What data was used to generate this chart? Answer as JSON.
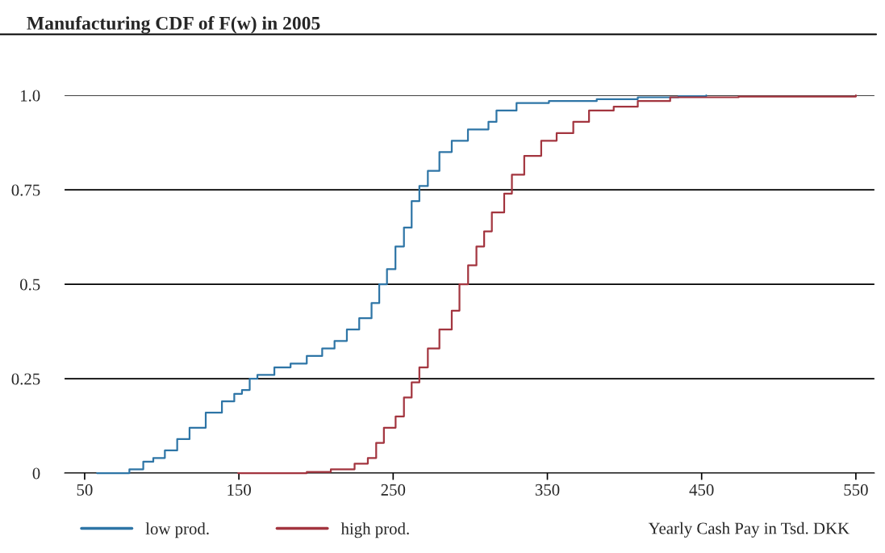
{
  "chart_data": {
    "type": "step",
    "title": "Manufacturing CDF of F(w) in 2005",
    "xlabel": "Yearly Cash Pay in Tsd. DKK",
    "xlim": [
      37,
      562
    ],
    "ylim": [
      0,
      1.0
    ],
    "xticks": [
      50,
      150,
      250,
      350,
      450,
      550
    ],
    "yticks": [
      0,
      0.25,
      0.5,
      0.75,
      {
        "value": 1,
        "label": "1.0"
      }
    ],
    "grid": "y",
    "legend": "bottom left",
    "line_style": "solid",
    "marker": "none",
    "series": [
      {
        "name": "low prod.",
        "color": "#2e75a6",
        "x": [
          58,
          76,
          79,
          84,
          88,
          94.5,
          102,
          110,
          118,
          128.5,
          139,
          147,
          152,
          157,
          162,
          173,
          183.5,
          194,
          204,
          212,
          220,
          228,
          236,
          241,
          246,
          251.5,
          257,
          262,
          267,
          272.5,
          280,
          288,
          298.5,
          311.8,
          317,
          330,
          351,
          382,
          408.6,
          435,
          453
        ],
        "values": [
          0,
          0,
          0.01,
          0.01,
          0.03,
          0.04,
          0.06,
          0.09,
          0.12,
          0.16,
          0.19,
          0.21,
          0.22,
          0.25,
          0.26,
          0.28,
          0.29,
          0.31,
          0.33,
          0.35,
          0.38,
          0.41,
          0.45,
          0.5,
          0.54,
          0.6,
          0.65,
          0.72,
          0.76,
          0.8,
          0.85,
          0.88,
          0.91,
          0.93,
          0.96,
          0.98,
          0.985,
          0.99,
          0.995,
          0.998,
          1.0
        ]
      },
      {
        "name": "high prod.",
        "color": "#a3353f",
        "x": [
          149.5,
          194,
          209.6,
          225,
          233.6,
          239,
          244,
          251.6,
          257,
          262,
          267,
          272.5,
          280,
          288,
          293,
          298.6,
          304,
          309,
          314,
          322,
          327,
          335,
          346,
          356,
          366.8,
          377,
          393,
          408.6,
          429.6,
          474,
          550
        ],
        "values": [
          0,
          0.003,
          0.01,
          0.025,
          0.04,
          0.08,
          0.12,
          0.15,
          0.2,
          0.24,
          0.28,
          0.33,
          0.38,
          0.43,
          0.5,
          0.55,
          0.6,
          0.64,
          0.69,
          0.74,
          0.79,
          0.84,
          0.88,
          0.9,
          0.93,
          0.96,
          0.97,
          0.985,
          0.995,
          0.997,
          1.0
        ]
      }
    ]
  }
}
